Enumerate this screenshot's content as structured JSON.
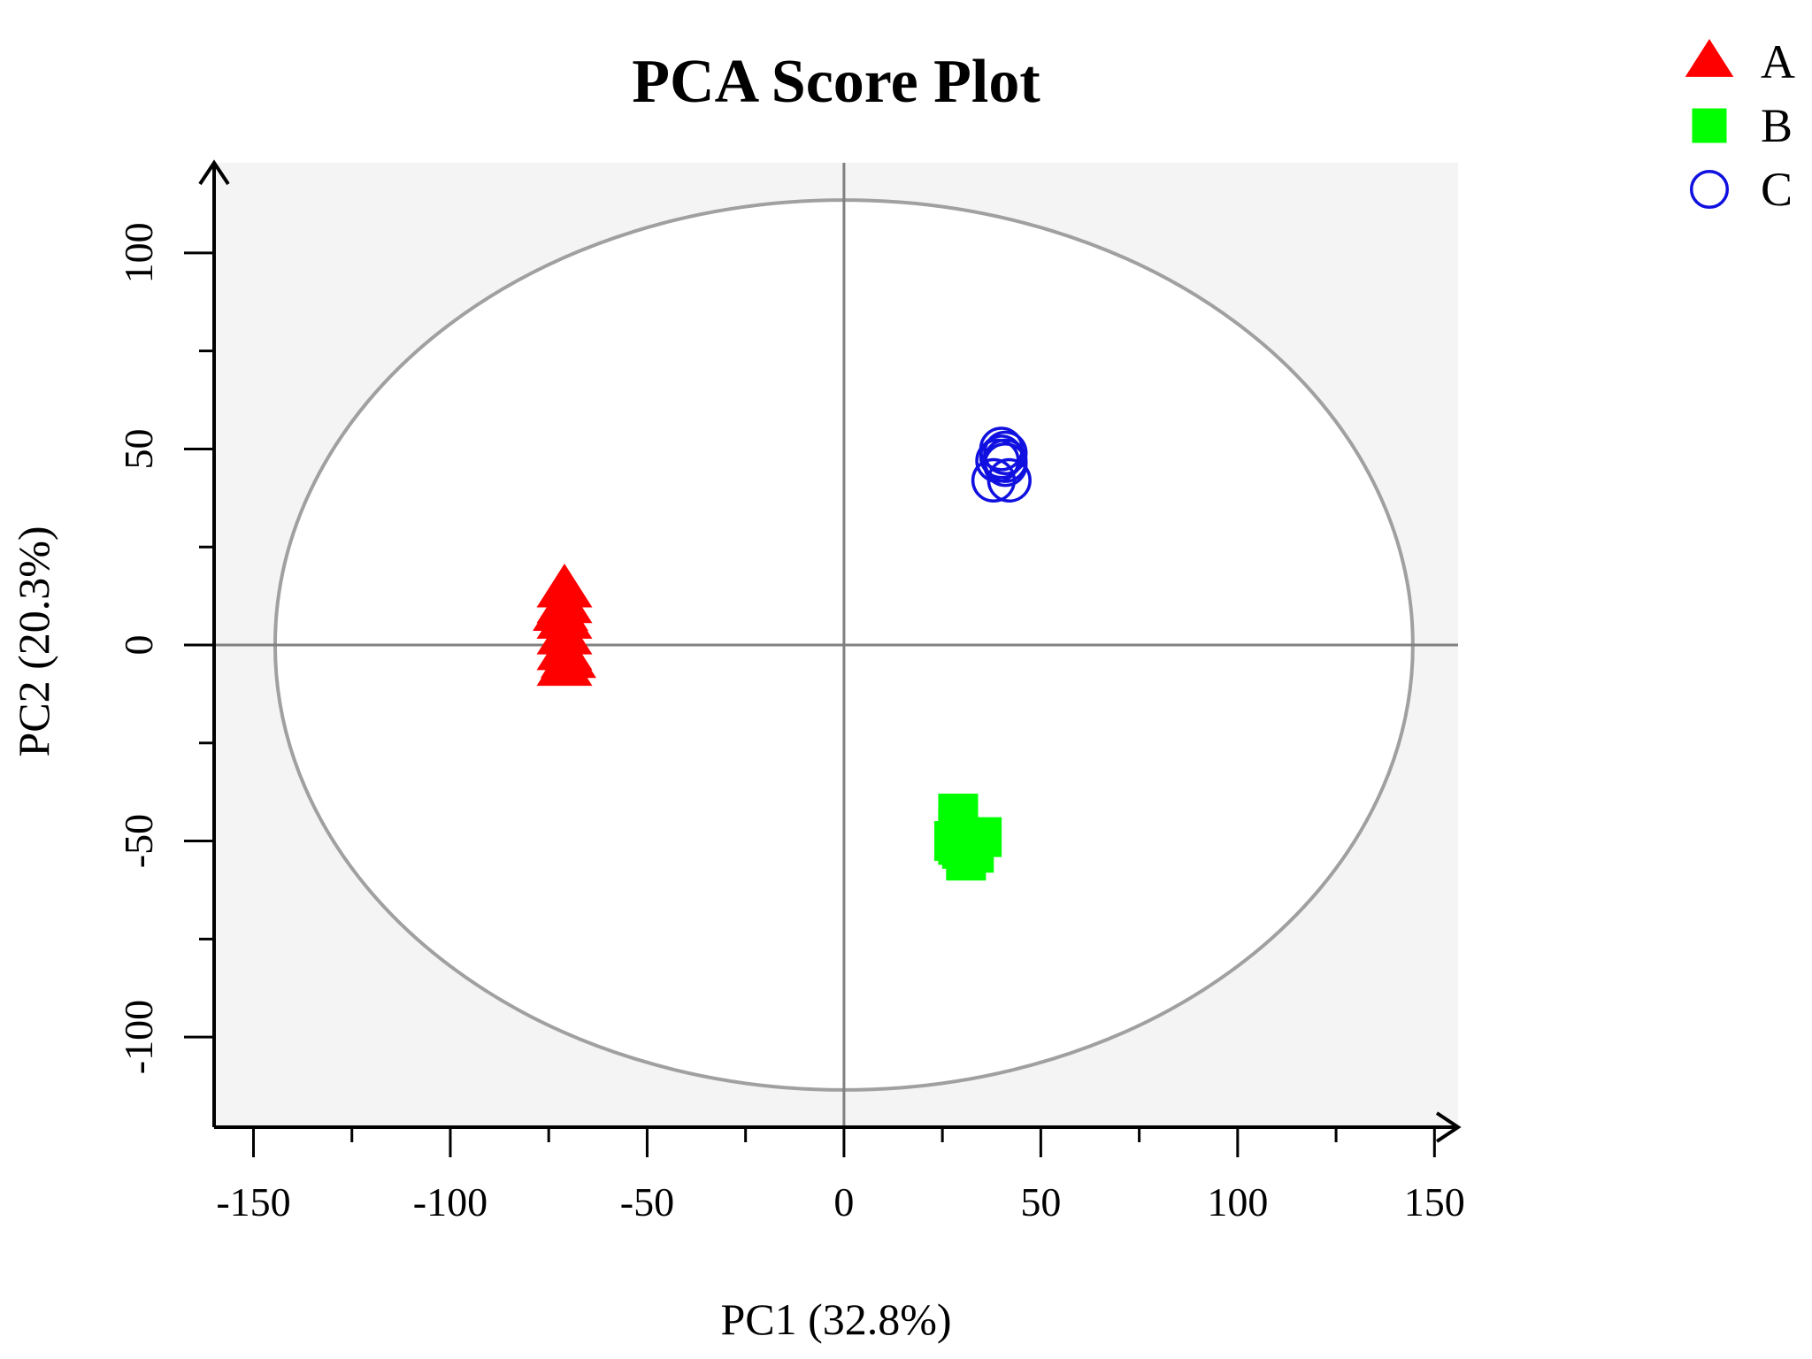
{
  "chart_data": {
    "type": "scatter",
    "title": "PCA Score Plot",
    "xlabel": "PC1 (32.8%)",
    "ylabel": "PC2 (20.3%)",
    "xlim": [
      -160,
      156
    ],
    "ylim": [
      -123,
      123
    ],
    "xticks": [
      -150,
      -100,
      -50,
      0,
      50,
      100,
      150
    ],
    "xtick_labels": [
      "-150",
      "-100",
      "-50",
      "0",
      "50",
      "100",
      "150"
    ],
    "yticks": [
      -100,
      -50,
      0,
      50,
      100
    ],
    "ytick_labels": [
      "-100",
      "-50",
      "0",
      "50",
      "100"
    ],
    "grid": false,
    "legend_position": "top-right",
    "confidence_ellipse": {
      "center": [
        0,
        0
      ],
      "rx": 144.5,
      "ry": 113.5
    },
    "series": [
      {
        "name": "A",
        "marker": "triangle",
        "color": "#ff0000",
        "points": [
          [
            -71,
            14
          ],
          [
            -71,
            10
          ],
          [
            -71,
            6
          ],
          [
            -71,
            2
          ],
          [
            -71,
            -2
          ],
          [
            -71,
            -6
          ],
          [
            -70,
            -4
          ],
          [
            -72,
            8
          ]
        ]
      },
      {
        "name": "B",
        "marker": "square",
        "color": "#00ff00",
        "points": [
          [
            29,
            -43
          ],
          [
            29,
            -47
          ],
          [
            30,
            -52
          ],
          [
            29,
            -51
          ],
          [
            35,
            -49
          ],
          [
            33,
            -53
          ],
          [
            31,
            -55
          ],
          [
            28,
            -50
          ]
        ]
      },
      {
        "name": "C",
        "marker": "circle",
        "color": "#1010e0",
        "points": [
          [
            41,
            49
          ],
          [
            40,
            48
          ],
          [
            39,
            47
          ],
          [
            41,
            46
          ],
          [
            38,
            42
          ],
          [
            42,
            42
          ],
          [
            40,
            50
          ],
          [
            41,
            47
          ]
        ]
      }
    ]
  }
}
